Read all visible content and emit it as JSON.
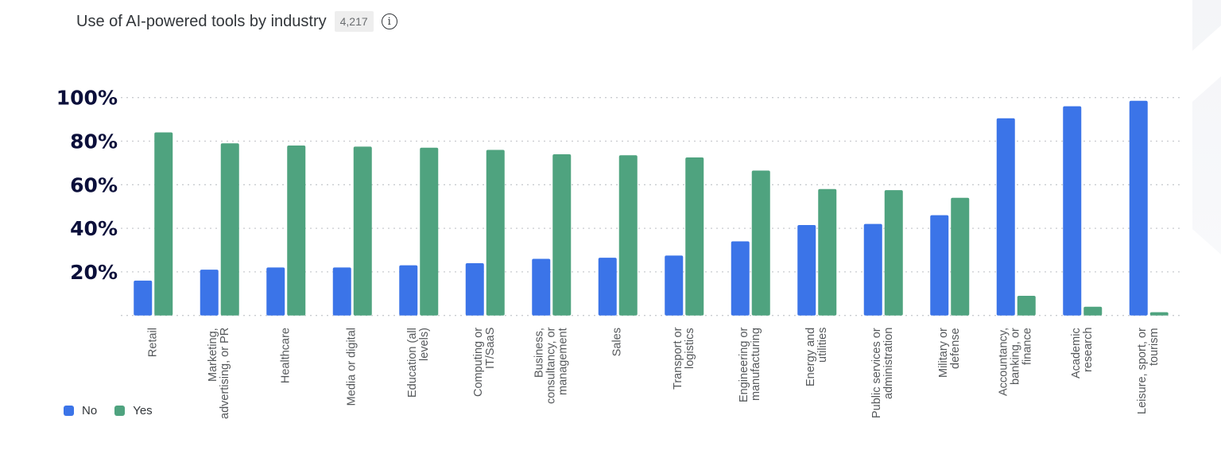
{
  "header": {
    "title": "Use of AI-powered tools by industry",
    "count": "4,217",
    "info_icon": "info-icon"
  },
  "chart_data": {
    "type": "bar",
    "title": "Use of AI-powered tools by industry",
    "xlabel": "",
    "ylabel": "",
    "ylim": [
      0,
      100
    ],
    "yticks": [
      "20%",
      "40%",
      "60%",
      "80%",
      "100%"
    ],
    "grid": true,
    "legend_position": "bottom-left",
    "categories": [
      "Retail",
      "Marketing, advertising, or PR",
      "Healthcare",
      "Media or digital",
      "Education (all levels)",
      "Computing or IT/SaaS",
      "Business, consultancy, or management",
      "Sales",
      "Transport or logistics",
      "Engineering or manufacturing",
      "Energy and utilities",
      "Public services or administration",
      "Military or defense",
      "Accountancy, banking, or finance",
      "Academic research",
      "Leisure, sport, or tourism"
    ],
    "series": [
      {
        "name": "No",
        "color": "#3b74e8",
        "values": [
          16,
          21,
          22,
          22,
          23,
          24,
          26,
          26.5,
          27.5,
          34,
          41.5,
          42,
          46,
          90.5,
          96,
          98.5
        ]
      },
      {
        "name": "Yes",
        "color": "#4fa37f",
        "values": [
          84,
          79,
          78,
          77.5,
          77,
          76,
          74,
          73.5,
          72.5,
          66.5,
          58,
          57.5,
          54,
          9,
          4,
          1.5
        ]
      }
    ]
  }
}
